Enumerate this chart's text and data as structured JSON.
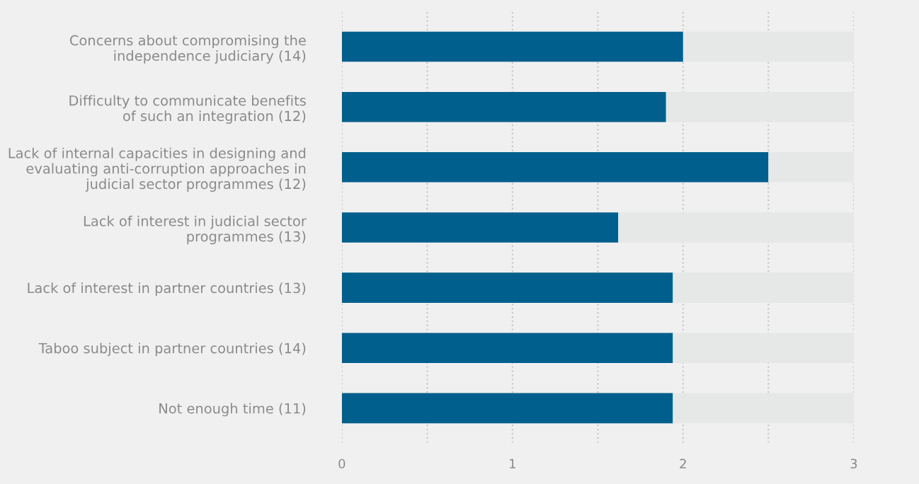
{
  "chart_data": {
    "type": "bar",
    "orientation": "horizontal",
    "categories": [
      "Concerns about compromising the\nindependence judiciary (14)",
      "Difficulty to communicate benefits\nof such an integration (12)",
      "Lack of internal capacities in designing and\nevaluating anti-corruption approaches in\njudicial sector programmes (12)",
      "Lack of interest in judicial sector\nprogrammes (13)",
      "Lack of interest in partner countries (13)",
      "Taboo subject in partner countries (14)",
      "Not enough time (11)"
    ],
    "series": [
      {
        "color": "#005f8c",
        "values": [
          2.0,
          1.9,
          2.5,
          1.62,
          1.94,
          1.94,
          1.94
        ]
      },
      {
        "color": "#e6e7e7",
        "values": [
          1.0,
          1.1,
          0.5,
          1.38,
          1.06,
          1.06,
          1.06
        ]
      }
    ],
    "stacked": true,
    "xlim": [
      0,
      3
    ],
    "xticks": [
      0,
      {
        "value": 0.5,
        "label": null
      },
      1,
      {
        "value": 1.5,
        "label": null
      },
      2,
      {
        "value": 2.5,
        "label": null
      },
      3
    ],
    "grid": "x"
  }
}
